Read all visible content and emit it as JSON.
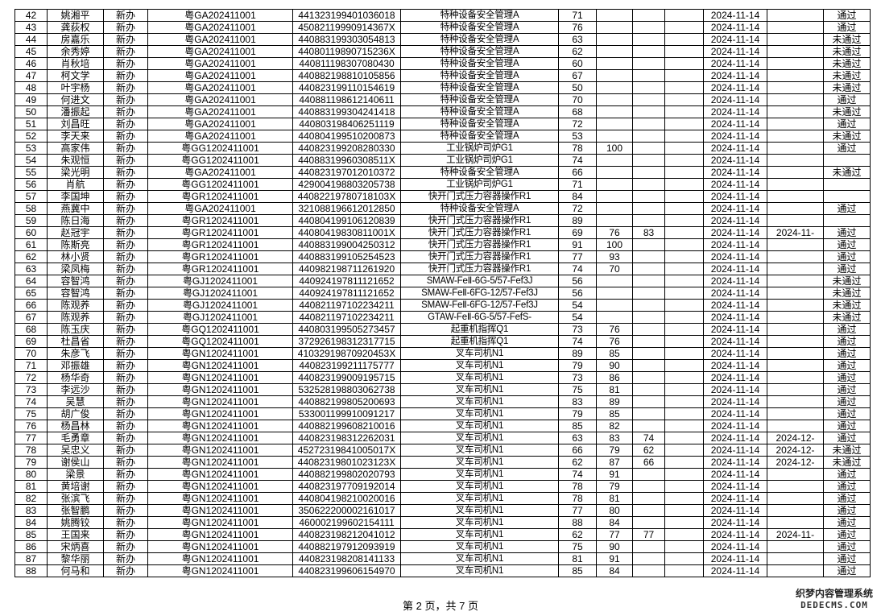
{
  "table": {
    "rows": [
      [
        "42",
        "姚湘平",
        "新办",
        "粤GA202411001",
        "441323199401036018",
        "特种设备安全管理A",
        "71",
        "",
        "",
        "",
        "2024-11-14",
        "",
        "通过"
      ],
      [
        "43",
        "龚荻权",
        "新办",
        "粤GA202411001",
        "45082119990914367X",
        "特种设备安全管理A",
        "76",
        "",
        "",
        "",
        "2024-11-14",
        "",
        "通过"
      ],
      [
        "44",
        "房嘉乐",
        "新办",
        "粤GA202411001",
        "440883199303054813",
        "特种设备安全管理A",
        "63",
        "",
        "",
        "",
        "2024-11-14",
        "",
        "未通过"
      ],
      [
        "45",
        "余秀婷",
        "新办",
        "粤GA202411001",
        "44080119890715236X",
        "特种设备安全管理A",
        "62",
        "",
        "",
        "",
        "2024-11-14",
        "",
        "未通过"
      ],
      [
        "46",
        "肖秋培",
        "新办",
        "粤GA202411001",
        "440811198307080430",
        "特种设备安全管理A",
        "60",
        "",
        "",
        "",
        "2024-11-14",
        "",
        "未通过"
      ],
      [
        "47",
        "柯文学",
        "新办",
        "粤GA202411001",
        "440882198810105856",
        "特种设备安全管理A",
        "67",
        "",
        "",
        "",
        "2024-11-14",
        "",
        "未通过"
      ],
      [
        "48",
        "叶宇杨",
        "新办",
        "粤GA202411001",
        "440823199110154619",
        "特种设备安全管理A",
        "50",
        "",
        "",
        "",
        "2024-11-14",
        "",
        "未通过"
      ],
      [
        "49",
        "何进文",
        "新办",
        "粤GA202411001",
        "440881198612140611",
        "特种设备安全管理A",
        "70",
        "",
        "",
        "",
        "2024-11-14",
        "",
        "通过"
      ],
      [
        "50",
        "潘振起",
        "新办",
        "粤GA202411001",
        "440883199304241418",
        "特种设备安全管理A",
        "68",
        "",
        "",
        "",
        "2024-11-14",
        "",
        "未通过"
      ],
      [
        "51",
        "刘昌旺",
        "新办",
        "粤GA202411001",
        "440803198406251119",
        "特种设备安全管理A",
        "72",
        "",
        "",
        "",
        "2024-11-14",
        "",
        "通过"
      ],
      [
        "52",
        "李天来",
        "新办",
        "粤GA202411001",
        "440804199510200873",
        "特种设备安全管理A",
        "53",
        "",
        "",
        "",
        "2024-11-14",
        "",
        "未通过"
      ],
      [
        "53",
        "高家伟",
        "新办",
        "粤GG1202411001",
        "440823199208280330",
        "工业锅炉司炉G1",
        "78",
        "100",
        "",
        "",
        "2024-11-14",
        "",
        "通过"
      ],
      [
        "54",
        "朱观恒",
        "新办",
        "粤GG1202411001",
        "44088319960308511X",
        "工业锅炉司炉G1",
        "74",
        "",
        "",
        "",
        "2024-11-14",
        "",
        ""
      ],
      [
        "55",
        "梁光明",
        "新办",
        "粤GA202411001",
        "440823197012010372",
        "特种设备安全管理A",
        "66",
        "",
        "",
        "",
        "2024-11-14",
        "",
        "未通过"
      ],
      [
        "56",
        "肖航",
        "新办",
        "粤GG1202411001",
        "429004198803205738",
        "工业锅炉司炉G1",
        "71",
        "",
        "",
        "",
        "2024-11-14",
        "",
        ""
      ],
      [
        "57",
        "李国坤",
        "新办",
        "粤GR1202411001",
        "44082219780718103X",
        "快开门式压力容器操作R1",
        "84",
        "",
        "",
        "",
        "2024-11-14",
        "",
        ""
      ],
      [
        "58",
        "燕冀中",
        "新办",
        "粤GA202411001",
        "321088196612012850",
        "特种设备安全管理A",
        "72",
        "",
        "",
        "",
        "2024-11-14",
        "",
        "通过"
      ],
      [
        "59",
        "陈日海",
        "新办",
        "粤GR1202411001",
        "440804199106120839",
        "快开门式压力容器操作R1",
        "89",
        "",
        "",
        "",
        "2024-11-14",
        "",
        ""
      ],
      [
        "60",
        "赵冠宇",
        "新办",
        "粤GR1202411001",
        "44080419830811001X",
        "快开门式压力容器操作R1",
        "69",
        "76",
        "83",
        "",
        "2024-11-14",
        "2024-11-",
        "通过"
      ],
      [
        "61",
        "陈斯亮",
        "新办",
        "粤GR1202411001",
        "440883199004250312",
        "快开门式压力容器操作R1",
        "91",
        "100",
        "",
        "",
        "2024-11-14",
        "",
        "通过"
      ],
      [
        "62",
        "林小贤",
        "新办",
        "粤GR1202411001",
        "440883199105254523",
        "快开门式压力容器操作R1",
        "77",
        "93",
        "",
        "",
        "2024-11-14",
        "",
        "通过"
      ],
      [
        "63",
        "梁凤梅",
        "新办",
        "粤GR1202411001",
        "440982198711261920",
        "快开门式压力容器操作R1",
        "74",
        "70",
        "",
        "",
        "2024-11-14",
        "",
        "通过"
      ],
      [
        "64",
        "容智鸿",
        "新办",
        "粤GJ1202411001",
        "440924197811121652",
        "SMAW-FeⅡ-6G-5/57-Fef3J",
        "56",
        "",
        "",
        "",
        "2024-11-14",
        "",
        "未通过"
      ],
      [
        "65",
        "容智鸿",
        "新办",
        "粤GJ1202411001",
        "440924197811121652",
        "SMAW-FeⅡ-6FG-12/57-Fef3J",
        "56",
        "",
        "",
        "",
        "2024-11-14",
        "",
        "未通过"
      ],
      [
        "66",
        "陈观养",
        "新办",
        "粤GJ1202411001",
        "440821197102234211",
        "SMAW-FeⅡ-6FG-12/57-Fef3J",
        "54",
        "",
        "",
        "",
        "2024-11-14",
        "",
        "未通过"
      ],
      [
        "67",
        "陈观养",
        "新办",
        "粤GJ1202411001",
        "440821197102234211",
        "GTAW-FeⅡ-6G-5/57-FefS-",
        "54",
        "",
        "",
        "",
        "2024-11-14",
        "",
        "未通过"
      ],
      [
        "68",
        "陈玉庆",
        "新办",
        "粤GQ1202411001",
        "440803199505273457",
        "起重机指挥Q1",
        "73",
        "76",
        "",
        "",
        "2024-11-14",
        "",
        "通过"
      ],
      [
        "69",
        "杜昌省",
        "新办",
        "粤GQ1202411001",
        "372926198312317715",
        "起重机指挥Q1",
        "74",
        "76",
        "",
        "",
        "2024-11-14",
        "",
        "通过"
      ],
      [
        "70",
        "朱彦飞",
        "新办",
        "粤GN1202411001",
        "41032919870920453X",
        "叉车司机N1",
        "89",
        "85",
        "",
        "",
        "2024-11-14",
        "",
        "通过"
      ],
      [
        "71",
        "邓振雄",
        "新办",
        "粤GN1202411001",
        "440823199211175777",
        "叉车司机N1",
        "79",
        "90",
        "",
        "",
        "2024-11-14",
        "",
        "通过"
      ],
      [
        "72",
        "杨华奇",
        "新办",
        "粤GN1202411001",
        "440823199009195715",
        "叉车司机N1",
        "73",
        "86",
        "",
        "",
        "2024-11-14",
        "",
        "通过"
      ],
      [
        "73",
        "李远沙",
        "新办",
        "粤GN1202411001",
        "532528198803062738",
        "叉车司机N1",
        "75",
        "81",
        "",
        "",
        "2024-11-14",
        "",
        "通过"
      ],
      [
        "74",
        "吴慧",
        "新办",
        "粤GN1202411001",
        "440882199805200693",
        "叉车司机N1",
        "83",
        "89",
        "",
        "",
        "2024-11-14",
        "",
        "通过"
      ],
      [
        "75",
        "胡广俊",
        "新办",
        "粤GN1202411001",
        "533001199910091217",
        "叉车司机N1",
        "79",
        "85",
        "",
        "",
        "2024-11-14",
        "",
        "通过"
      ],
      [
        "76",
        "杨昌林",
        "新办",
        "粤GN1202411001",
        "440882199608210016",
        "叉车司机N1",
        "85",
        "82",
        "",
        "",
        "2024-11-14",
        "",
        "通过"
      ],
      [
        "77",
        "毛勇章",
        "新办",
        "粤GN1202411001",
        "440823198312262031",
        "叉车司机N1",
        "63",
        "83",
        "74",
        "",
        "2024-11-14",
        "2024-12-",
        "通过"
      ],
      [
        "78",
        "吴忠义",
        "新办",
        "粤GN1202411001",
        "45272319841005017X",
        "叉车司机N1",
        "66",
        "79",
        "62",
        "",
        "2024-11-14",
        "2024-12-",
        "未通过"
      ],
      [
        "79",
        "谢侯山",
        "新办",
        "粤GN1202411001",
        "44082319801023123X",
        "叉车司机N1",
        "62",
        "87",
        "66",
        "",
        "2024-11-14",
        "2024-12-",
        "未通过"
      ],
      [
        "80",
        "梁景",
        "新办",
        "粤GN1202411001",
        "440882199802020793",
        "叉车司机N1",
        "74",
        "91",
        "",
        "",
        "2024-11-14",
        "",
        "通过"
      ],
      [
        "81",
        "黄培谢",
        "新办",
        "粤GN1202411001",
        "440823197709192014",
        "叉车司机N1",
        "78",
        "79",
        "",
        "",
        "2024-11-14",
        "",
        "通过"
      ],
      [
        "82",
        "张滨飞",
        "新办",
        "粤GN1202411001",
        "440804198210020016",
        "叉车司机N1",
        "78",
        "81",
        "",
        "",
        "2024-11-14",
        "",
        "通过"
      ],
      [
        "83",
        "张智鹏",
        "新办",
        "粤GN1202411001",
        "350622200002161017",
        "叉车司机N1",
        "77",
        "80",
        "",
        "",
        "2024-11-14",
        "",
        "通过"
      ],
      [
        "84",
        "姚腾铰",
        "新办",
        "粤GN1202411001",
        "460002199602154111",
        "叉车司机N1",
        "88",
        "84",
        "",
        "",
        "2024-11-14",
        "",
        "通过"
      ],
      [
        "85",
        "王国来",
        "新办",
        "粤GN1202411001",
        "440823198212041012",
        "叉车司机N1",
        "62",
        "77",
        "77",
        "",
        "2024-11-14",
        "2024-11-",
        "通过"
      ],
      [
        "86",
        "宋炳喜",
        "新办",
        "粤GN1202411001",
        "440882197912093919",
        "叉车司机N1",
        "75",
        "90",
        "",
        "",
        "2024-11-14",
        "",
        "通过"
      ],
      [
        "87",
        "黎华丽",
        "新办",
        "粤GN1202411001",
        "440823198208141133",
        "叉车司机N1",
        "81",
        "91",
        "",
        "",
        "2024-11-14",
        "",
        "通过"
      ],
      [
        "88",
        "何马和",
        "新办",
        "粤GN1202411001",
        "440823199606154970",
        "叉车司机N1",
        "85",
        "84",
        "",
        "",
        "2024-11-14",
        "",
        "通过"
      ]
    ]
  },
  "footer": {
    "page_label": "第 2 页，共 7 页"
  },
  "watermark": {
    "line1": "织梦内容管理系统",
    "line2": "DEDECMS.COM"
  }
}
